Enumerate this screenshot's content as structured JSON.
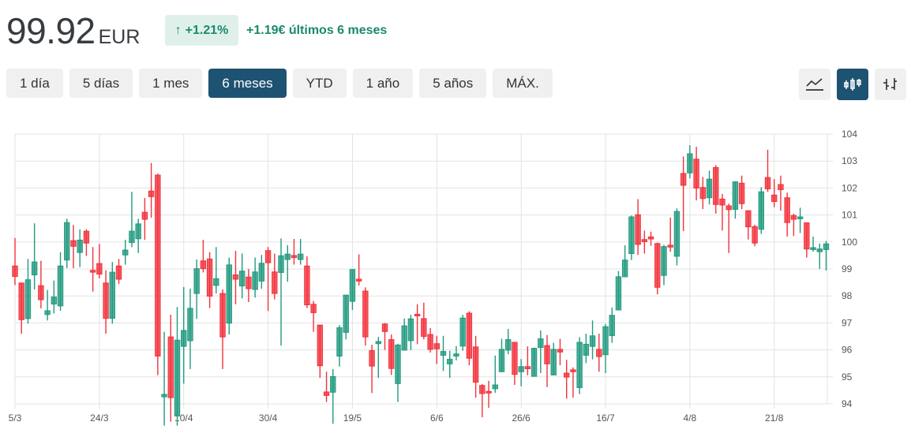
{
  "header": {
    "price": "99.92",
    "currency": "EUR",
    "badge_arrow": "↑",
    "badge_pct": "+1.21%",
    "change_text": "+1.19€ últimos 6 meses"
  },
  "ranges": [
    {
      "label": "1 día",
      "active": false
    },
    {
      "label": "5 días",
      "active": false
    },
    {
      "label": "1 mes",
      "active": false
    },
    {
      "label": "6 meses",
      "active": true
    },
    {
      "label": "YTD",
      "active": false
    },
    {
      "label": "1 año",
      "active": false
    },
    {
      "label": "5 años",
      "active": false
    },
    {
      "label": "MÁX.",
      "active": false
    }
  ],
  "chart_types": [
    {
      "icon": "line-chart-icon",
      "active": false
    },
    {
      "icon": "candlestick-chart-icon",
      "active": true
    },
    {
      "icon": "ohlc-bar-chart-icon",
      "active": false
    }
  ],
  "colors": {
    "up": "#229a7f",
    "down": "#f2323c",
    "accent": "#1e5272",
    "grid": "#e3e3e3"
  },
  "chart_data": {
    "type": "candlestick",
    "ylim": [
      94,
      104
    ],
    "y_ticks": [
      "104",
      "103",
      "102",
      "101",
      "100",
      "99",
      "98",
      "97",
      "96",
      "95",
      "94"
    ],
    "x_ticks": [
      {
        "index": 0,
        "label": "5/3"
      },
      {
        "index": 13,
        "label": "24/3"
      },
      {
        "index": 26,
        "label": "10/4"
      },
      {
        "index": 39,
        "label": "30/4"
      },
      {
        "index": 52,
        "label": "19/5"
      },
      {
        "index": 65,
        "label": "6/6"
      },
      {
        "index": 78,
        "label": "26/6"
      },
      {
        "index": 91,
        "label": "16/7"
      },
      {
        "index": 104,
        "label": "4/8"
      },
      {
        "index": 117,
        "label": "21/8"
      }
    ],
    "grid": true,
    "ohlc": [
      [
        99.11,
        100.15,
        98.4,
        98.72
      ],
      [
        98.48,
        98.48,
        96.6,
        97.12
      ],
      [
        97.16,
        99.37,
        96.97,
        98.6
      ],
      [
        98.78,
        100.69,
        98.24,
        99.26
      ],
      [
        98.38,
        99.3,
        97.54,
        97.86
      ],
      [
        97.31,
        98.22,
        97.09,
        97.45
      ],
      [
        97.7,
        98.57,
        97.35,
        97.96
      ],
      [
        97.63,
        99.62,
        97.45,
        99.11
      ],
      [
        99.33,
        100.86,
        99.03,
        100.72
      ],
      [
        100.05,
        100.63,
        99.03,
        99.84
      ],
      [
        99.61,
        100.47,
        99.07,
        100.07
      ],
      [
        100.4,
        100.47,
        99.48,
        99.96
      ],
      [
        98.95,
        99.81,
        98.16,
        98.88
      ],
      [
        99.2,
        99.93,
        98.65,
        98.81
      ],
      [
        98.48,
        98.95,
        96.6,
        97.17
      ],
      [
        97.17,
        99.26,
        96.97,
        98.88
      ],
      [
        99.11,
        99.37,
        98.44,
        98.62
      ],
      [
        99.52,
        100.08,
        99.16,
        99.7
      ],
      [
        99.98,
        101.86,
        99.81,
        100.4
      ],
      [
        100.12,
        100.86,
        99.59,
        100.67
      ],
      [
        101.1,
        101.63,
        100.08,
        100.84
      ],
      [
        101.89,
        102.93,
        100.9,
        101.68
      ],
      [
        102.48,
        102.53,
        95.06,
        95.77
      ],
      [
        94.26,
        96.67,
        93.19,
        94.35
      ],
      [
        96.48,
        97.3,
        93.34,
        94.23
      ],
      [
        93.55,
        97.59,
        93.19,
        96.36
      ],
      [
        96.13,
        98.33,
        94.75,
        96.72
      ],
      [
        96.34,
        98.27,
        95.29,
        97.54
      ],
      [
        98.09,
        99.35,
        97.15,
        99.01
      ],
      [
        99.3,
        100.08,
        98.87,
        99.01
      ],
      [
        99.37,
        99.62,
        97.55,
        97.99
      ],
      [
        98.39,
        99.81,
        98.09,
        98.64
      ],
      [
        98.09,
        98.24,
        95.29,
        96.48
      ],
      [
        96.99,
        99.42,
        96.57,
        99.15
      ],
      [
        98.78,
        99.67,
        97.69,
        98.62
      ],
      [
        98.37,
        99.57,
        97.91,
        98.92
      ],
      [
        98.7,
        99.0,
        97.77,
        98.27
      ],
      [
        98.24,
        99.42,
        97.94,
        98.89
      ],
      [
        98.55,
        99.52,
        98.27,
        99.21
      ],
      [
        99.68,
        99.81,
        97.44,
        99.23
      ],
      [
        98.89,
        99.57,
        97.87,
        98.09
      ],
      [
        98.87,
        100.13,
        96.16,
        99.49
      ],
      [
        99.35,
        99.88,
        98.53,
        99.55
      ],
      [
        99.5,
        100.11,
        99.16,
        99.42
      ],
      [
        99.35,
        100.11,
        99.16,
        99.55
      ],
      [
        99.11,
        99.47,
        97.55,
        97.67
      ],
      [
        97.69,
        97.81,
        96.67,
        97.38
      ],
      [
        96.92,
        96.92,
        94.96,
        95.41
      ],
      [
        94.44,
        95.19,
        94.07,
        94.31
      ],
      [
        94.43,
        95.29,
        93.26,
        95.01
      ],
      [
        95.77,
        96.92,
        95.38,
        96.82
      ],
      [
        96.65,
        98.03,
        96.39,
        98.03
      ],
      [
        97.8,
        98.98,
        97.48,
        98.98
      ],
      [
        98.62,
        99.54,
        98.39,
        98.55
      ],
      [
        98.18,
        98.32,
        96.16,
        96.48
      ],
      [
        95.97,
        96.19,
        94.4,
        95.4
      ],
      [
        96.23,
        96.48,
        94.96,
        96.31
      ],
      [
        96.96,
        96.99,
        96.0,
        96.68
      ],
      [
        96.38,
        96.57,
        95.07,
        95.31
      ],
      [
        94.75,
        96.23,
        94.07,
        96.18
      ],
      [
        95.99,
        97.16,
        95.99,
        96.89
      ],
      [
        96.34,
        97.3,
        95.99,
        97.15
      ],
      [
        97.32,
        97.69,
        96.21,
        97.26
      ],
      [
        97.16,
        97.75,
        96.39,
        96.5
      ],
      [
        96.57,
        96.81,
        95.9,
        96.02
      ],
      [
        96.23,
        96.52,
        95.48,
        96.04
      ],
      [
        95.8,
        96.52,
        95.22,
        95.94
      ],
      [
        95.48,
        95.97,
        94.96,
        95.65
      ],
      [
        95.77,
        96.14,
        95.61,
        95.85
      ],
      [
        96.14,
        97.3,
        95.97,
        97.18
      ],
      [
        97.36,
        97.43,
        95.43,
        95.69
      ],
      [
        96.11,
        96.52,
        94.23,
        94.8
      ],
      [
        94.68,
        94.73,
        93.5,
        94.38
      ],
      [
        94.46,
        94.85,
        93.85,
        94.4
      ],
      [
        94.56,
        95.79,
        94.41,
        94.7
      ],
      [
        95.19,
        96.41,
        95.19,
        96.02
      ],
      [
        95.99,
        96.78,
        95.84,
        96.38
      ],
      [
        96.28,
        96.28,
        94.7,
        95.09
      ],
      [
        95.19,
        95.66,
        94.65,
        95.38
      ],
      [
        95.38,
        96.13,
        95.06,
        95.3
      ],
      [
        95.02,
        96.08,
        95.02,
        96.06
      ],
      [
        96.09,
        96.72,
        95.14,
        96.41
      ],
      [
        96.16,
        96.55,
        94.62,
        95.48
      ],
      [
        95.07,
        96.26,
        95.07,
        96.02
      ],
      [
        96.02,
        96.41,
        95.43,
        95.92
      ],
      [
        95.14,
        95.63,
        94.19,
        94.99
      ],
      [
        95.26,
        95.35,
        94.23,
        95.19
      ],
      [
        94.6,
        96.47,
        94.36,
        96.28
      ],
      [
        95.8,
        96.6,
        95.51,
        96.21
      ],
      [
        96.13,
        97.09,
        95.65,
        96.52
      ],
      [
        96.02,
        96.6,
        95.19,
        95.75
      ],
      [
        95.82,
        96.96,
        95.14,
        96.86
      ],
      [
        96.53,
        97.57,
        96.26,
        97.28
      ],
      [
        97.48,
        98.92,
        97.48,
        98.71
      ],
      [
        98.71,
        99.88,
        98.71,
        99.33
      ],
      [
        99.57,
        100.98,
        99.33,
        100.93
      ],
      [
        101.01,
        101.59,
        99.52,
        99.91
      ],
      [
        100.09,
        100.42,
        99.57,
        100.01
      ],
      [
        100.19,
        100.38,
        99.86,
        100.11
      ],
      [
        99.94,
        99.98,
        98.06,
        98.32
      ],
      [
        98.76,
        99.89,
        98.4,
        99.83
      ],
      [
        99.88,
        100.9,
        99.64,
        99.81
      ],
      [
        99.47,
        101.24,
        99.13,
        101.13
      ],
      [
        102.54,
        103.17,
        100.4,
        102.1
      ],
      [
        102.56,
        103.59,
        102.36,
        103.27
      ],
      [
        103.07,
        103.53,
        101.54,
        102.0
      ],
      [
        102.02,
        102.41,
        101.22,
        101.61
      ],
      [
        101.64,
        102.64,
        101.39,
        102.33
      ],
      [
        102.76,
        102.85,
        101.05,
        101.39
      ],
      [
        101.59,
        101.78,
        100.42,
        101.37
      ],
      [
        101.34,
        101.42,
        99.59,
        101.2
      ],
      [
        101.21,
        102.25,
        100.86,
        102.23
      ],
      [
        102.18,
        102.46,
        101.22,
        101.42
      ],
      [
        101.16,
        101.16,
        100.09,
        100.56
      ],
      [
        100.57,
        100.64,
        99.84,
        99.96
      ],
      [
        100.47,
        102.03,
        100.3,
        101.86
      ],
      [
        102.39,
        103.42,
        101.86,
        101.97
      ],
      [
        101.74,
        102.33,
        101.29,
        101.5
      ],
      [
        102.13,
        102.46,
        101.16,
        101.94
      ],
      [
        101.64,
        101.83,
        100.2,
        100.72
      ],
      [
        100.98,
        101.05,
        100.22,
        100.84
      ],
      [
        100.86,
        101.27,
        100.33,
        100.93
      ],
      [
        100.71,
        100.72,
        99.42,
        99.74
      ],
      [
        99.72,
        100.2,
        99.64,
        99.79
      ],
      [
        99.64,
        99.94,
        99.0,
        99.74
      ],
      [
        99.72,
        100.04,
        98.94,
        99.93
      ]
    ]
  }
}
